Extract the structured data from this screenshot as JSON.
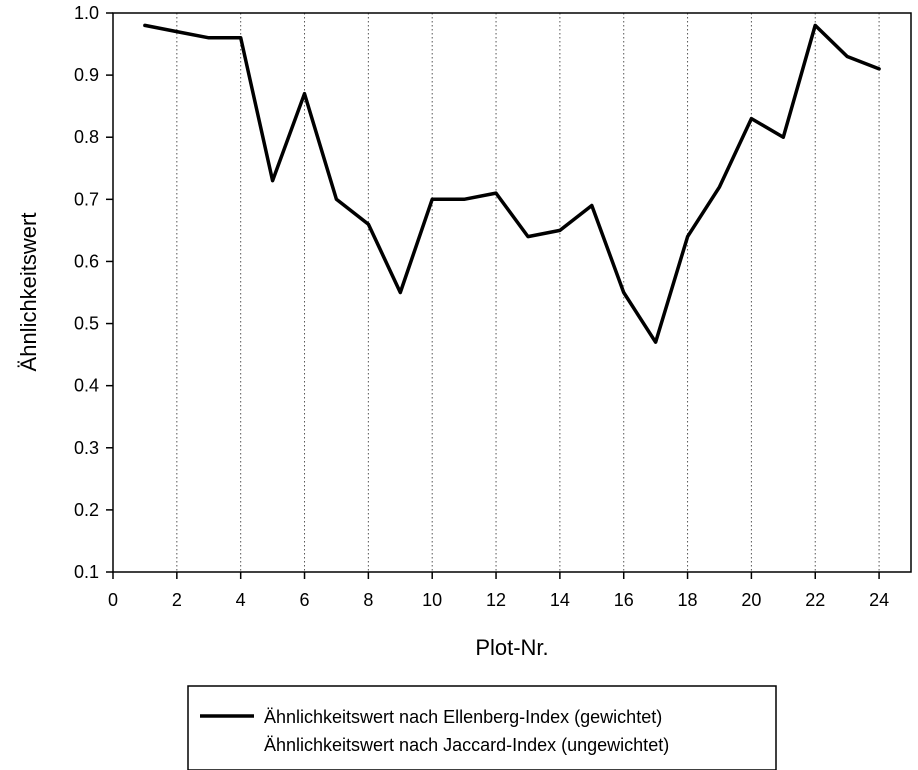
{
  "chart_data": {
    "type": "line",
    "xlabel": "Plot-Nr.",
    "ylabel": "Ähnlichkeitswert",
    "xlim": [
      0,
      25
    ],
    "ylim": [
      0.1,
      1.0
    ],
    "x_ticks": [
      0,
      2,
      4,
      6,
      8,
      10,
      12,
      14,
      16,
      18,
      20,
      22,
      24
    ],
    "y_ticks": [
      0.1,
      0.2,
      0.3,
      0.4,
      0.5,
      0.6,
      0.7,
      0.8,
      0.9,
      1.0
    ],
    "x_tick_labels": [
      "0",
      "2",
      "4",
      "6",
      "8",
      "10",
      "12",
      "14",
      "16",
      "18",
      "20",
      "22",
      "24"
    ],
    "y_tick_labels": [
      "0.1",
      "0.2",
      "0.3",
      "0.4",
      "0.5",
      "0.6",
      "0.7",
      "0.8",
      "0.9",
      "1.0"
    ],
    "grid": "vertical dotted lines at even x values",
    "legend_position": "bottom-center",
    "series": [
      {
        "name": "Ähnlichkeitswert nach Ellenberg-Index (gewichtet)",
        "style": "solid",
        "color": "#000000",
        "x": [
          1,
          2,
          3,
          4,
          5,
          6,
          7,
          8,
          9,
          10,
          11,
          12,
          13,
          14,
          15,
          16,
          17,
          18,
          19,
          20,
          21,
          22,
          23,
          24
        ],
        "values": [
          0.98,
          0.97,
          0.96,
          0.96,
          0.73,
          0.87,
          0.7,
          0.66,
          0.55,
          0.7,
          0.7,
          0.71,
          0.64,
          0.65,
          0.69,
          0.55,
          0.47,
          0.64,
          0.72,
          0.83,
          0.8,
          0.98,
          0.93,
          0.91
        ]
      },
      {
        "name": "Ähnlichkeitswert nach Jaccard-Index (ungewichtet)",
        "style": "none",
        "color": "#000000",
        "x": [],
        "values": []
      }
    ]
  }
}
